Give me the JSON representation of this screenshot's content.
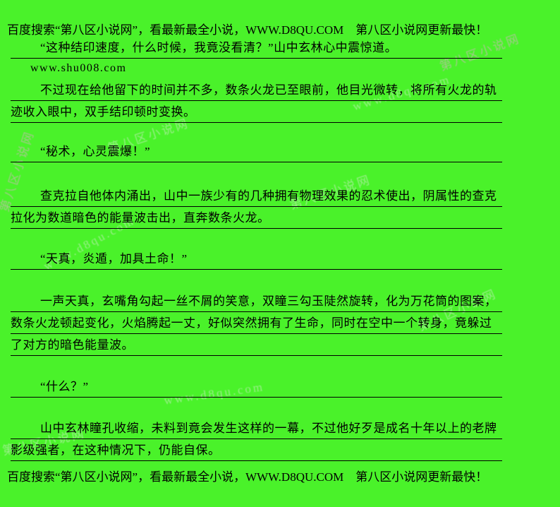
{
  "page": {
    "background_color": "#4AF22A",
    "text_color": "#000000",
    "watermark_gray": "#d6ecd2",
    "watermark_pink": "#e9a9d8"
  },
  "header": {
    "text": "百度搜索“第八区小说网”，看最新最全小说，WWW.D8QU.COM　第八区小说网更新最快！"
  },
  "footer": {
    "text": "百度搜索“第八区小说网”，看最新最全小说，WWW.D8QU.COM　第八区小说网更新最快！"
  },
  "content": {
    "site_link": "www.shu008.com",
    "paragraphs": [
      {
        "text": "“这种结印速度，什么时候，我竟没看清？”山中玄林心中震惊道。"
      },
      {
        "text": "不过现在给他留下的时间并不多，数条火龙已至眼前，他目光微转，将所有火龙的轨迹收入眼中，双手结印顿时变换。"
      },
      {
        "text": "“秘术，心灵震爆！”"
      },
      {
        "text": "查克拉自他体内涌出，山中一族少有的几种拥有物理效果的忍术使出，阴属性的查克拉化为数道暗色的能量波击出，直奔数条火龙。"
      },
      {
        "text": "“天真，炎遁，加具土命！”"
      },
      {
        "text": "一声天真，玄嘴角勾起一丝不屑的笑意，双瞳三勾玉陡然旋转，化为万花筒的图案，数条火龙顿起变化，火焰腾起一丈，好似突然拥有了生命，同时在空中一个转身，竟躲过了对方的暗色能量波。"
      },
      {
        "text": "“什么？”"
      },
      {
        "text": "山中玄林瞳孔收缩，未料到竟会发生这样的一幕，不过他好歹是成名十年以上的老牌影级强者，在这种情况下，仍能自保。"
      }
    ]
  },
  "watermarks": {
    "site_name": "第八区小说网",
    "site_url": "www.d8qu.com"
  }
}
